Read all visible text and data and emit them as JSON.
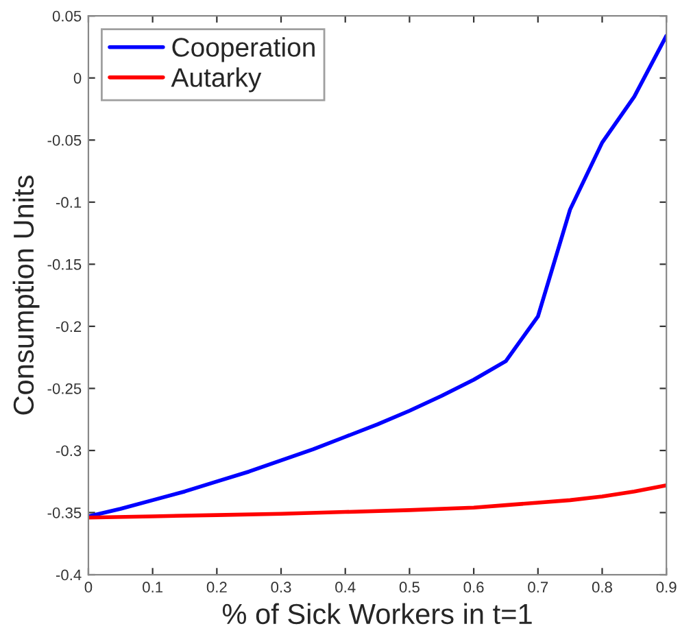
{
  "chart_data": {
    "type": "line",
    "xlabel": "% of Sick Workers in t=1",
    "ylabel": "Consumption Units",
    "xlim": [
      0,
      0.9
    ],
    "ylim": [
      -0.4,
      0.05
    ],
    "xticks": [
      0,
      0.1,
      0.2,
      0.3,
      0.4,
      0.5,
      0.6,
      0.7,
      0.8,
      0.9
    ],
    "yticks": [
      -0.4,
      -0.35,
      -0.3,
      -0.25,
      -0.2,
      -0.15,
      -0.1,
      -0.05,
      0,
      0.05
    ],
    "grid": false,
    "legend": "top left",
    "marker": "none",
    "line_style": "solid",
    "series": [
      {
        "name": "Cooperation",
        "color": "#0000ff",
        "x": [
          0,
          0.05,
          0.1,
          0.15,
          0.2,
          0.25,
          0.3,
          0.35,
          0.4,
          0.45,
          0.5,
          0.55,
          0.6,
          0.65,
          0.7,
          0.75,
          0.8,
          0.85,
          0.9
        ],
        "values": [
          -0.353,
          -0.347,
          -0.34,
          -0.333,
          -0.325,
          -0.317,
          -0.308,
          -0.299,
          -0.289,
          -0.279,
          -0.268,
          -0.256,
          -0.243,
          -0.228,
          -0.192,
          -0.106,
          -0.052,
          -0.015,
          0.034
        ]
      },
      {
        "name": "Autarky",
        "color": "#ff0000",
        "x": [
          0,
          0.1,
          0.2,
          0.3,
          0.4,
          0.5,
          0.6,
          0.65,
          0.7,
          0.75,
          0.8,
          0.85,
          0.9
        ],
        "values": [
          -0.354,
          -0.353,
          -0.352,
          -0.351,
          -0.3495,
          -0.348,
          -0.346,
          -0.344,
          -0.342,
          -0.34,
          -0.337,
          -0.333,
          -0.328
        ]
      }
    ]
  }
}
